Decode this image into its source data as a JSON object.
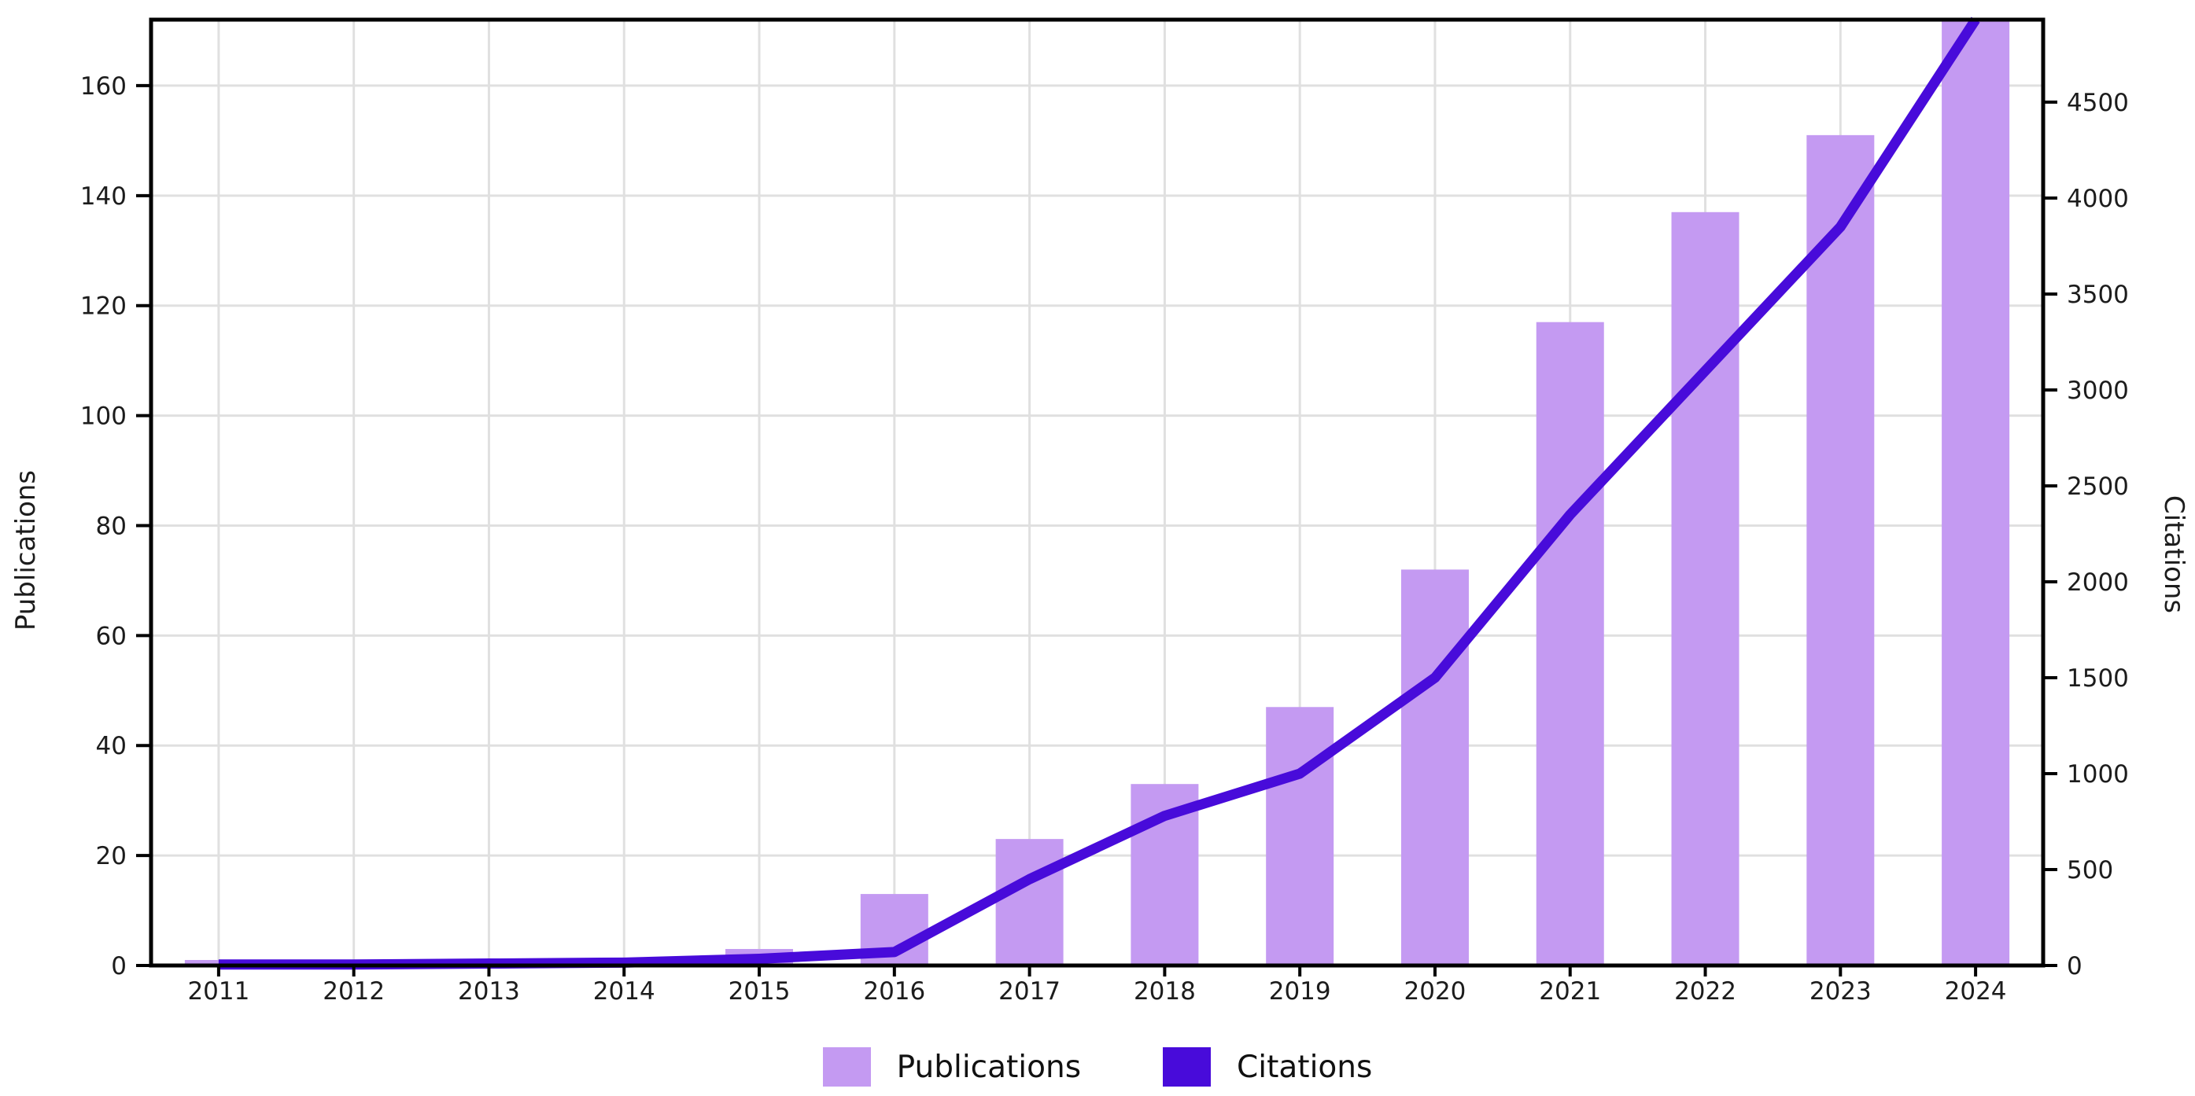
{
  "chart_data": {
    "type": "bar+line",
    "title": "",
    "categories": [
      "2011",
      "2012",
      "2013",
      "2014",
      "2015",
      "2016",
      "2017",
      "2018",
      "2019",
      "2020",
      "2021",
      "2022",
      "2023",
      "2024"
    ],
    "series": [
      {
        "name": "Publications",
        "type": "bar",
        "axis": "left",
        "color": "#c49af2",
        "values": [
          1,
          0,
          0,
          1,
          3,
          13,
          23,
          33,
          47,
          72,
          117,
          137,
          151,
          175
        ]
      },
      {
        "name": "Citations",
        "type": "line",
        "axis": "right",
        "color": "#480bda",
        "values": [
          5,
          5,
          10,
          15,
          35,
          70,
          450,
          780,
          1000,
          1500,
          2350,
          3100,
          3850,
          4930
        ]
      }
    ],
    "left_axis": {
      "label": "Publications",
      "range": [
        0,
        172
      ],
      "ticks": [
        0,
        20,
        40,
        60,
        80,
        100,
        120,
        140,
        160
      ]
    },
    "right_axis": {
      "label": "Citations",
      "range": [
        0,
        4930
      ],
      "ticks": [
        0,
        500,
        1000,
        1500,
        2000,
        2500,
        3000,
        3500,
        4000,
        4500
      ]
    },
    "grid": true,
    "publications_2024_clipped_at_axis_top": true,
    "legend": {
      "position": "bottom",
      "entries": [
        "Publications",
        "Citations"
      ]
    }
  },
  "axes": {
    "left_label": "Publications",
    "right_label": "Citations"
  },
  "legend": {
    "publications_label": "Publications",
    "citations_label": "Citations"
  },
  "colors": {
    "publications": "#c49af2",
    "citations": "#480bda",
    "grid": "#e0e0e0",
    "spine": "#000000",
    "text": "#1c1c1c",
    "background": "#ffffff"
  }
}
